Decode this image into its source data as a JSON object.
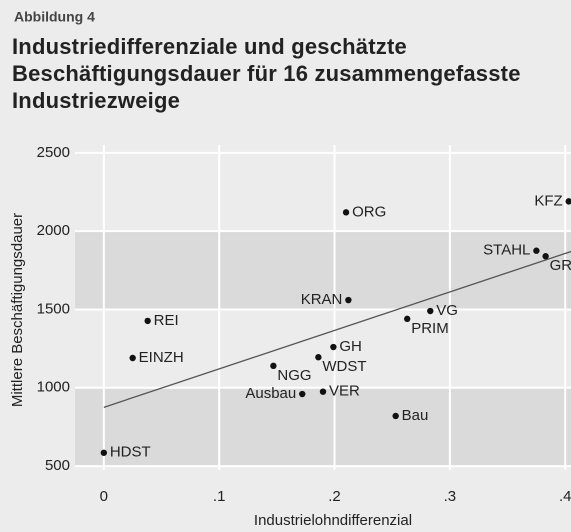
{
  "chart_data": {
    "type": "scatter",
    "supertitle": "Abbildung 4",
    "title": [
      "Industriedifferenziale und geschätzte",
      "Beschäftigungsdauer für 16 zusammengefasste",
      "Industriezweige"
    ],
    "xlabel": "Industrielohndifferenzial",
    "ylabel": "Mittlere Beschäftigungsdauer",
    "labels": [
      "HDST",
      "EINZH",
      "REI",
      "Ausbau",
      "VER",
      "NGG",
      "WDST",
      "GH",
      "KRAN",
      "ORG",
      "Bau",
      "PRIM",
      "VG",
      "STAHL",
      "GRP",
      "KFZ"
    ],
    "x": [
      0.0,
      0.025,
      0.038,
      0.172,
      0.19,
      0.147,
      0.186,
      0.199,
      0.212,
      0.21,
      0.253,
      0.263,
      0.283,
      0.375,
      0.383,
      0.403
    ],
    "y": [
      585,
      1190,
      1427,
      960,
      975,
      1140,
      1195,
      1260,
      1560,
      2120,
      820,
      1440,
      1490,
      1875,
      1840,
      2190
    ],
    "color": "#111111",
    "trend": {
      "x": [
        0,
        0.405
      ],
      "y": [
        875,
        1870
      ],
      "color": "#555555"
    },
    "xlim": [
      -0.025,
      0.405
    ],
    "ylim": [
      475,
      2550
    ],
    "xticks": [
      0,
      {
        "value": 0.1,
        "label": ".1"
      },
      {
        "value": 0.2,
        "label": ".2"
      },
      {
        "value": 0.3,
        "label": ".3"
      },
      {
        "value": 0.4,
        "label": ".4"
      }
    ],
    "yticks": [
      500,
      1000,
      1500,
      2000,
      2500
    ],
    "grid": true,
    "bands": true
  }
}
